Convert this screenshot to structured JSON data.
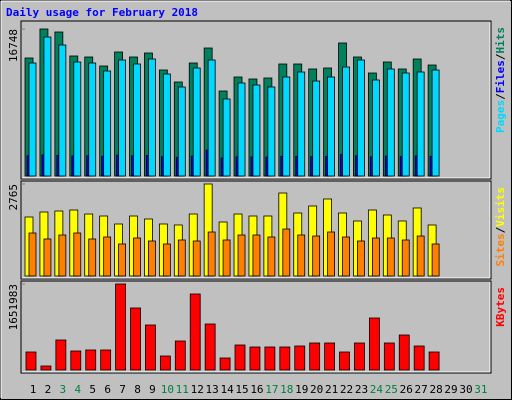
{
  "chart_data": [
    {
      "type": "bar",
      "title": "Daily usage for February 2018",
      "ylim": [
        0,
        16748
      ],
      "yticks": [
        16748
      ],
      "legend_separator": "/",
      "series": [
        {
          "name": "Hits",
          "color": "#00805c",
          "values": [
            13444,
            16748,
            16406,
            13672,
            13558,
            12532,
            14127,
            13558,
            14014,
            12077,
            10710,
            12874,
            14583,
            9684,
            11279,
            11051,
            11165,
            12760,
            12760,
            12191,
            12305,
            15153,
            13558,
            11735,
            12988,
            12191,
            13330,
            12646,
            null,
            null,
            null
          ]
        },
        {
          "name": "Files",
          "color": "#0000ff",
          "values": [
            2300,
            2400,
            2350,
            2280,
            2310,
            2250,
            2380,
            2290,
            2340,
            2200,
            2100,
            2260,
            2950,
            2050,
            2180,
            2170,
            2160,
            2240,
            2230,
            2210,
            2220,
            2450,
            2300,
            2190,
            2260,
            2210,
            2280,
            2240,
            null,
            null,
            null
          ]
        },
        {
          "name": "Pages",
          "color": "#00d8ff",
          "values": [
            12874,
            15836,
            14925,
            12988,
            12874,
            11963,
            13216,
            12760,
            13330,
            11621,
            10140,
            12305,
            13216,
            8773,
            10596,
            10368,
            10140,
            11279,
            11849,
            10823,
            11279,
            12418,
            13216,
            10937,
            12191,
            11735,
            11849,
            12077,
            null,
            null,
            null
          ]
        }
      ]
    },
    {
      "type": "bar",
      "ylim": [
        0,
        2765
      ],
      "yticks": [
        2765
      ],
      "legend_separator": "/",
      "series": [
        {
          "name": "Visits",
          "color": "#ffff00",
          "values": [
            1773,
            1923,
            1953,
            1983,
            1863,
            1803,
            1563,
            1803,
            1713,
            1563,
            1533,
            1863,
            2765,
            1623,
            1863,
            1803,
            1803,
            2494,
            1893,
            2104,
            2314,
            1893,
            1653,
            1983,
            1833,
            1653,
            2044,
            1533,
            null,
            null,
            null
          ]
        },
        {
          "name": "Sites",
          "color": "#ff8000",
          "values": [
            1292,
            1112,
            1232,
            1292,
            1112,
            1172,
            962,
            1142,
            1052,
            962,
            1082,
            1052,
            1322,
            1082,
            1232,
            1232,
            1172,
            1412,
            1232,
            1202,
            1322,
            1172,
            1052,
            1142,
            1142,
            1082,
            1202,
            962,
            null,
            null,
            null
          ]
        }
      ]
    },
    {
      "type": "bar",
      "ylim": [
        0,
        1651983
      ],
      "yticks": [
        1651983
      ],
      "categories": [
        "1",
        "2",
        "3",
        "4",
        "5",
        "6",
        "7",
        "8",
        "9",
        "10",
        "11",
        "12",
        "13",
        "14",
        "15",
        "16",
        "17",
        "18",
        "19",
        "20",
        "21",
        "22",
        "23",
        "24",
        "25",
        "26",
        "27",
        "28",
        "29",
        "30",
        "31"
      ],
      "category_colors": [
        "#000000",
        "#000000",
        "#008040",
        "#008040",
        "#000000",
        "#000000",
        "#000000",
        "#000000",
        "#000000",
        "#008040",
        "#008040",
        "#000000",
        "#000000",
        "#000000",
        "#000000",
        "#000000",
        "#008040",
        "#008040",
        "#000000",
        "#000000",
        "#000000",
        "#000000",
        "#000000",
        "#008040",
        "#008040",
        "#000000",
        "#000000",
        "#000000",
        "#000000",
        "#000000",
        "#008040"
      ],
      "series": [
        {
          "name": "KBytes",
          "color": "#ff0000",
          "values": [
            345760,
            76836,
            576274,
            364970,
            384182,
            384182,
            1651983,
            1190973,
            864410,
            268926,
            557064,
            1459892,
            883620,
            230509,
            480228,
            441810,
            441810,
            441810,
            461019,
            518645,
            518645,
            345760,
            518645,
            998864,
            518645,
            672319,
            461019,
            345760,
            null,
            null,
            null
          ]
        }
      ]
    }
  ]
}
